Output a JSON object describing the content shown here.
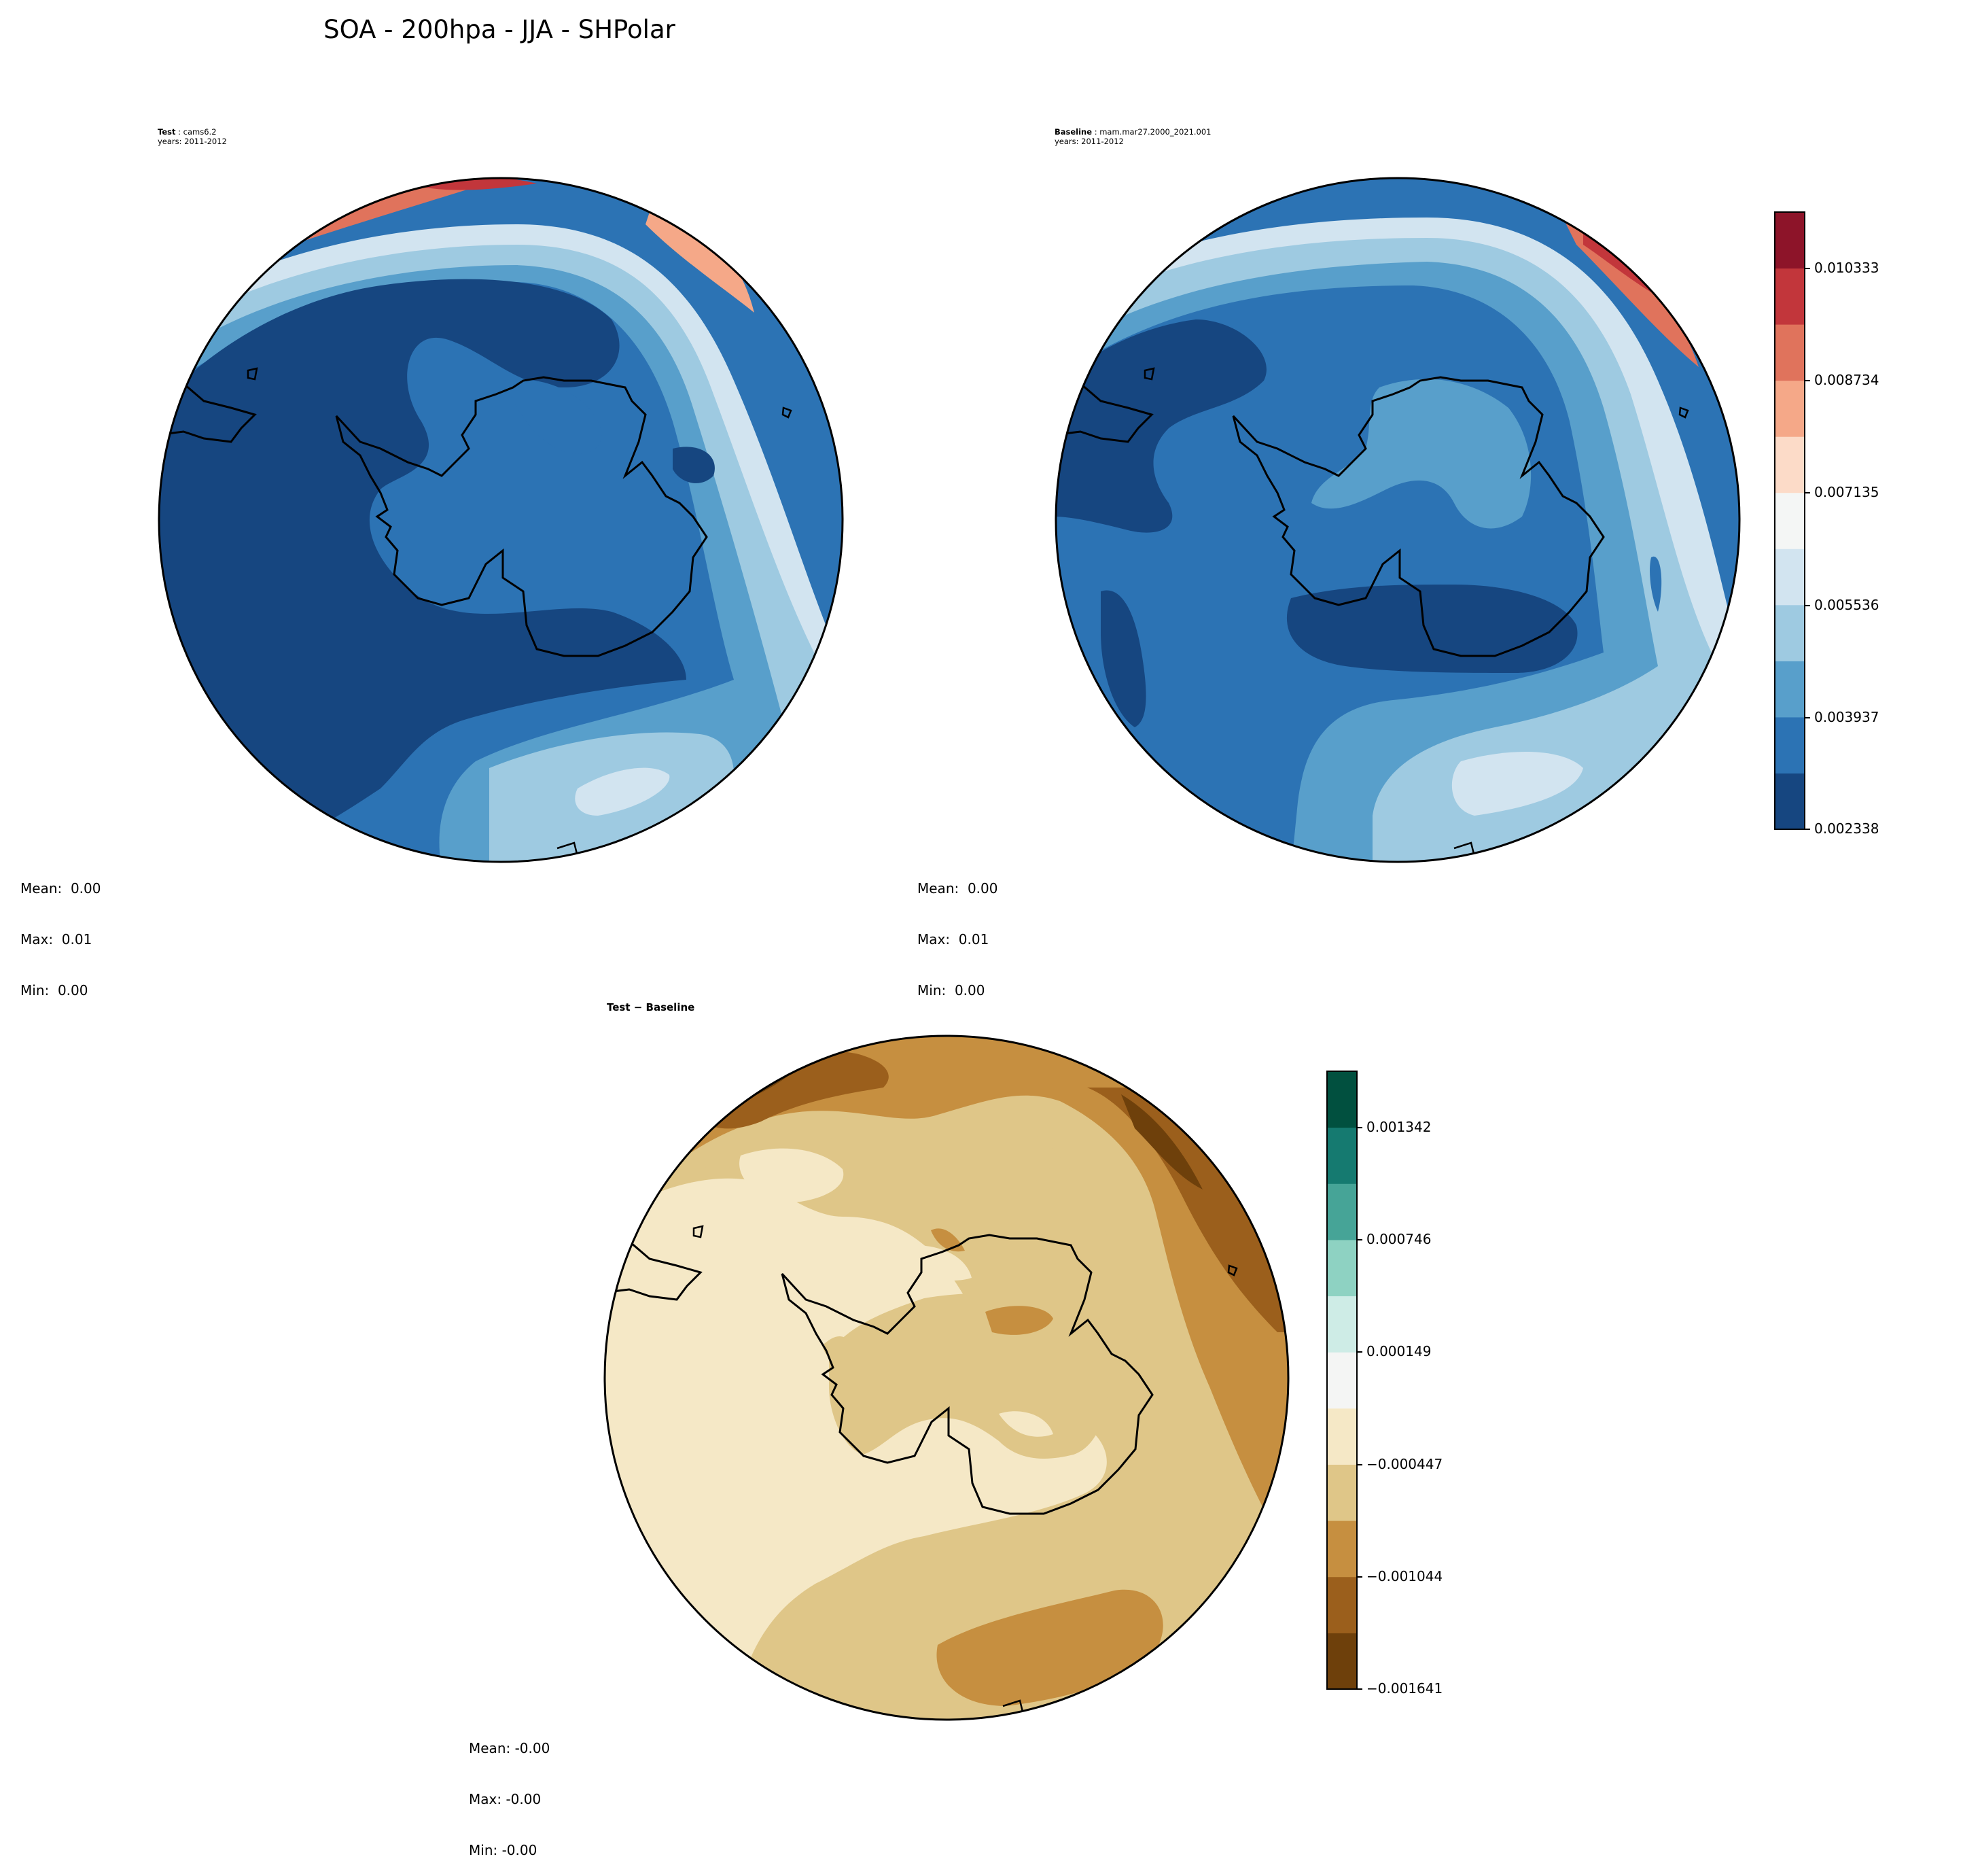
{
  "figure": {
    "title": "SOA - 200hpa - JJA - SHPolar"
  },
  "panels": {
    "test": {
      "label": "Test",
      "case": "cams6.2",
      "years": "years: 2011-2012",
      "stats": {
        "mean": "Mean:  0.00",
        "max": "Max:  0.01",
        "min": "Min:  0.00"
      }
    },
    "baseline": {
      "label": "Baseline",
      "case": "mam.mar27.2000_2021.001",
      "years": "years: 2011-2012",
      "stats": {
        "mean": "Mean:  0.00",
        "max": "Max:  0.01",
        "min": "Min:  0.00"
      }
    },
    "diff": {
      "label": "Test − Baseline",
      "stats": {
        "mean": "Mean: -0.00",
        "max": "Max: -0.00",
        "min": "Min: -0.00"
      }
    }
  },
  "colorbars": {
    "main": {
      "colormap": "RdBu_r",
      "ticks": [
        "0.010333",
        "0.008734",
        "0.007135",
        "0.005536",
        "0.003937",
        "0.002338"
      ],
      "levels": [
        0.002338,
        0.002871,
        0.003404,
        0.003937,
        0.00447,
        0.005003,
        0.005536,
        0.006069,
        0.006602,
        0.007135,
        0.007668,
        0.008201,
        0.008734,
        0.009267,
        0.0098,
        0.010333,
        0.010866
      ],
      "colors": [
        "#164680",
        "#2c73b4",
        "#589fcb",
        "#9ecae1",
        "#d2e4f0",
        "#f4f6f5",
        "#fcdbc8",
        "#f5a888",
        "#e0735c",
        "#c2363b",
        "#8d1429"
      ]
    },
    "diff": {
      "colormap": "BrBG",
      "ticks": [
        "0.001342",
        "0.000746",
        "0.000149",
        "−0.000447",
        "−0.001044",
        "−0.001641"
      ],
      "colors": [
        "#6e400b",
        "#9b5f1c",
        "#c68f40",
        "#dfc688",
        "#f5e8c6",
        "#f4f5f4",
        "#ceece6",
        "#8ed2c2",
        "#46a497",
        "#157a70",
        "#01503f"
      ]
    }
  },
  "chart_data": {
    "type": "heatmap",
    "projection": "south polar stereographic",
    "variable": "SOA",
    "level": "200hpa",
    "season": "JJA",
    "region": "SHPolar",
    "panels": [
      {
        "name": "Test",
        "case": "cams6.2",
        "years": "2011-2012",
        "mean": 0.0,
        "max": 0.01,
        "min": 0.0,
        "colorbar_range": [
          0.002338,
          0.010866
        ]
      },
      {
        "name": "Baseline",
        "case": "mam.mar27.2000_2021.001",
        "years": "2011-2012",
        "mean": 0.0,
        "max": 0.01,
        "min": 0.0,
        "colorbar_range": [
          0.002338,
          0.010866
        ]
      },
      {
        "name": "Test − Baseline",
        "mean": -0.0,
        "max": -0.0,
        "min": -0.0,
        "colorbar_range": [
          -0.001641,
          0.00164
        ]
      }
    ]
  }
}
